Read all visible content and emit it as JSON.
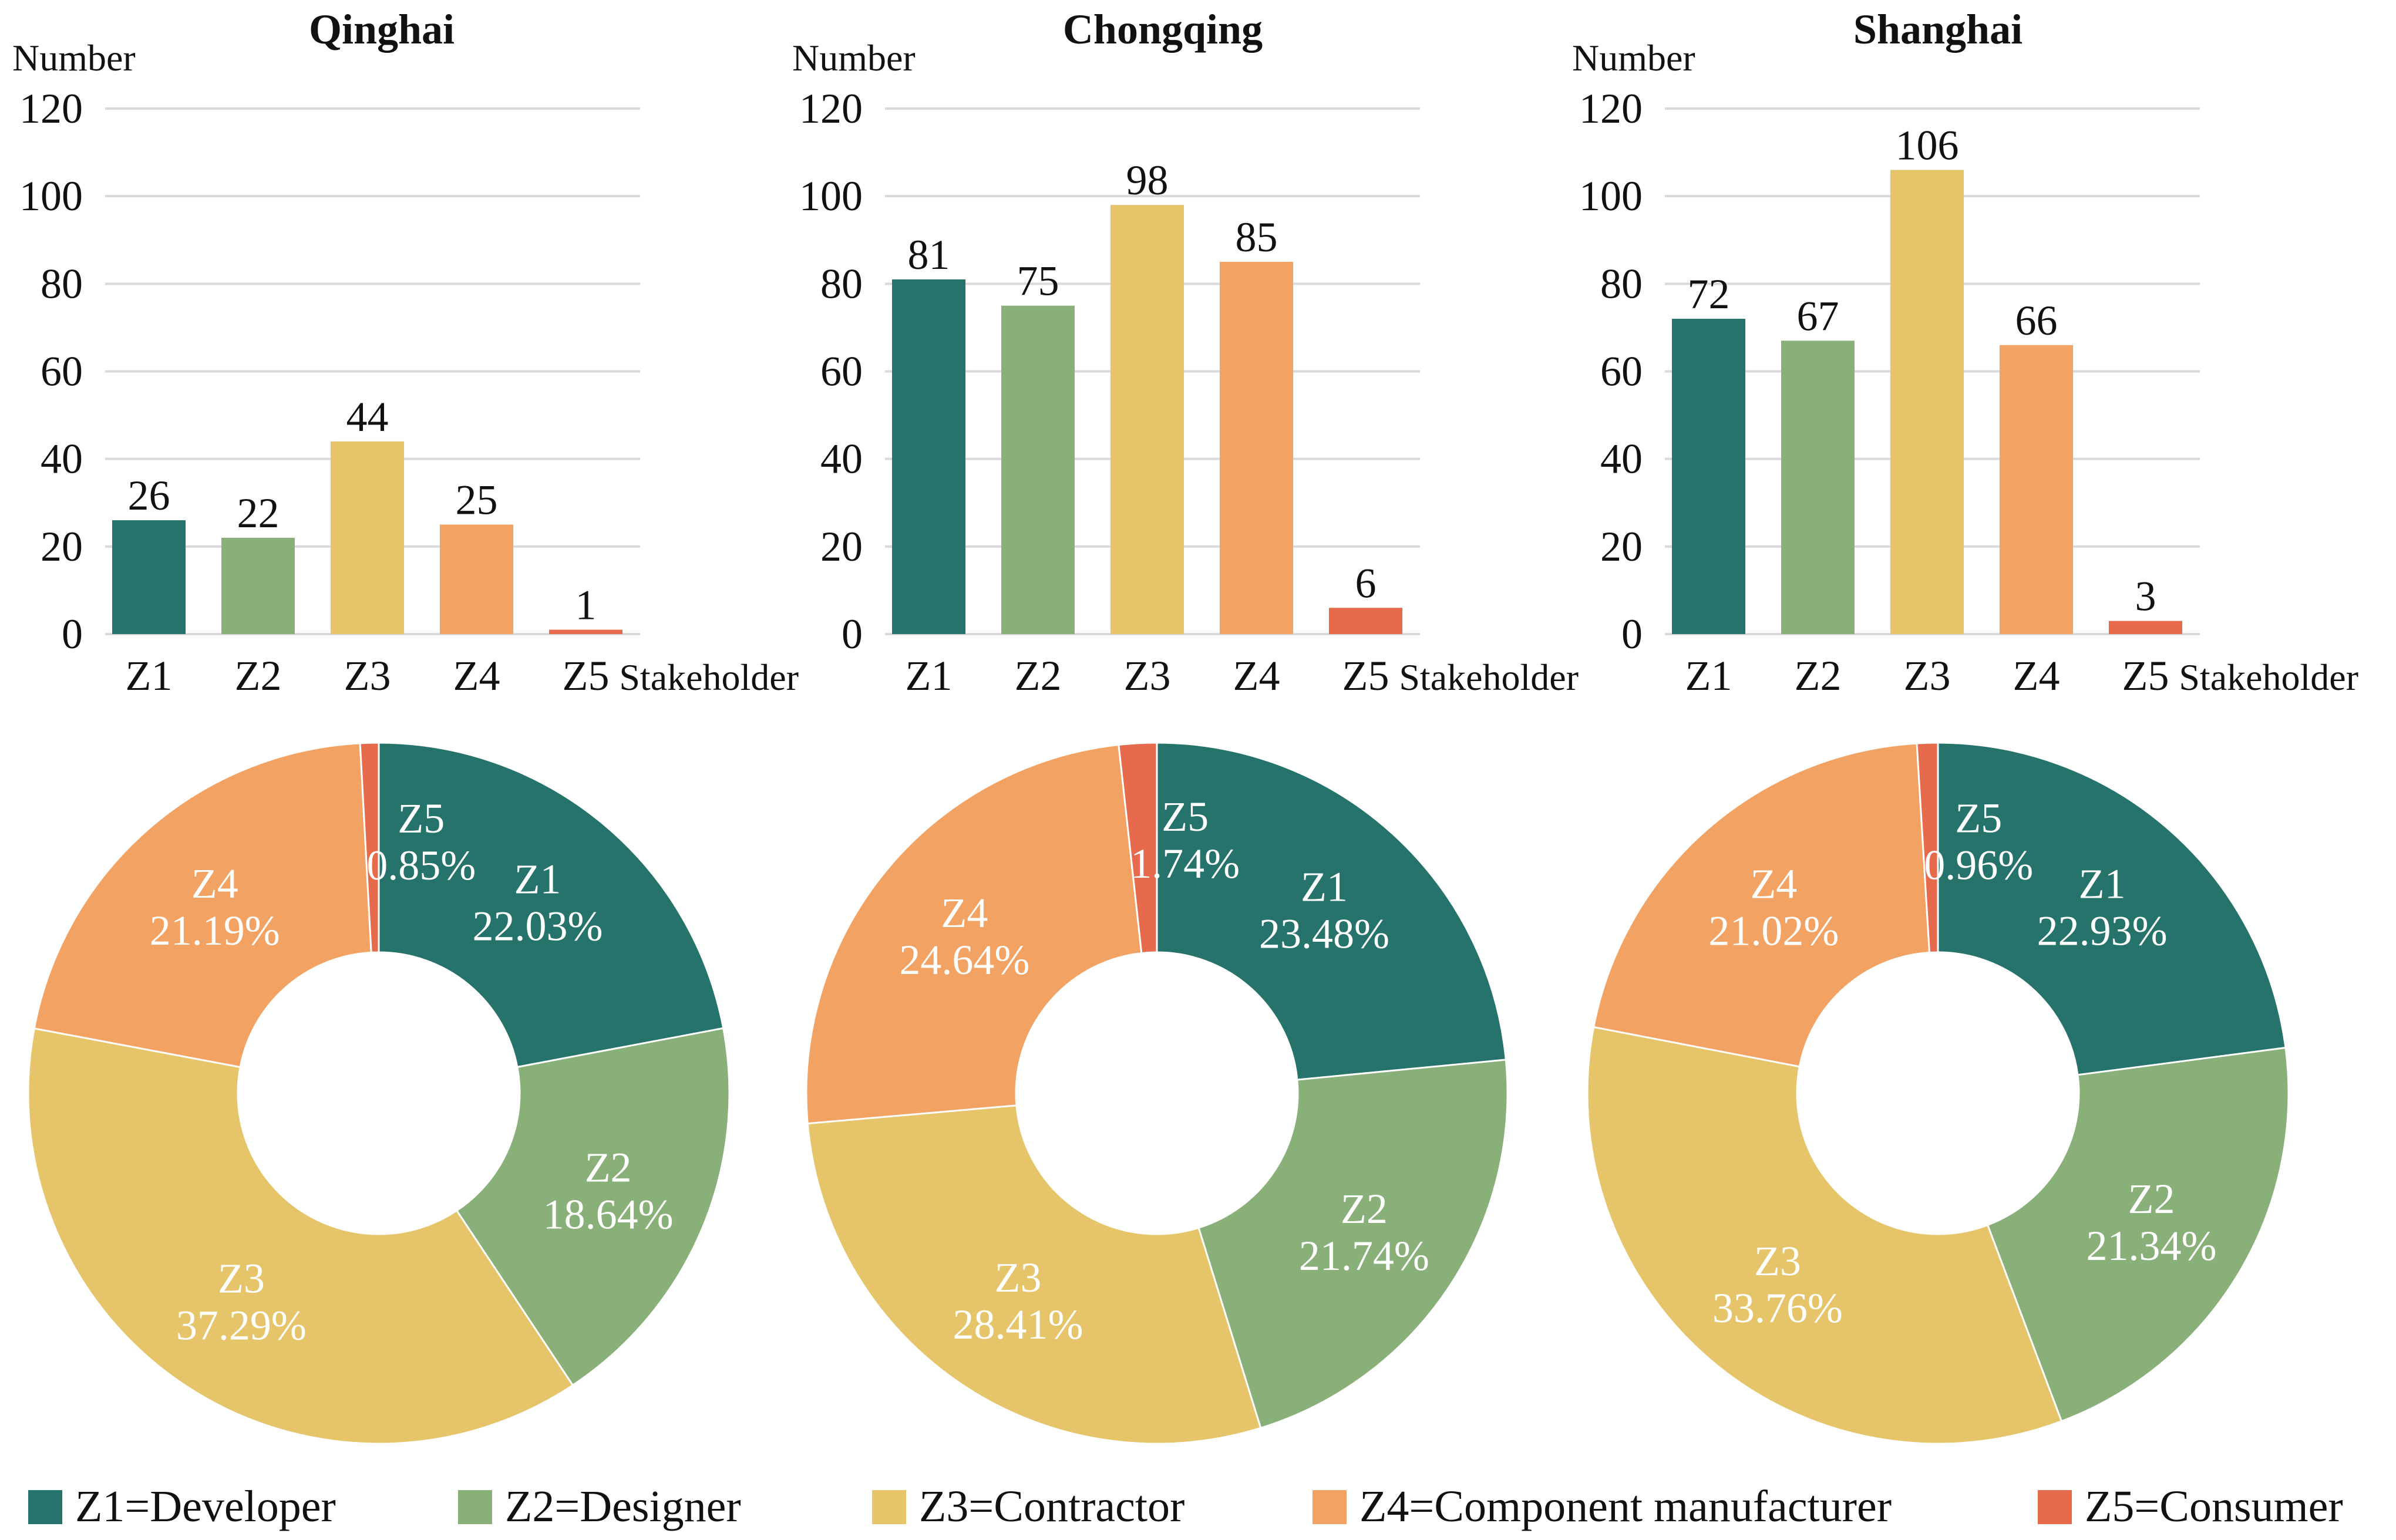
{
  "chart_data": [
    {
      "type": "bar",
      "title": "Qinghai",
      "ylabel": "Number",
      "xlabel": "Stakeholder",
      "ylim": [
        0,
        120
      ],
      "yticks": [
        0,
        20,
        40,
        60,
        80,
        100,
        120
      ],
      "grid": true,
      "categories": [
        "Z1",
        "Z2",
        "Z3",
        "Z4",
        "Z5"
      ],
      "values": [
        26,
        22,
        44,
        25,
        1
      ]
    },
    {
      "type": "bar",
      "title": "Chongqing",
      "ylabel": "Number",
      "xlabel": "Stakeholder",
      "ylim": [
        0,
        120
      ],
      "yticks": [
        0,
        20,
        40,
        60,
        80,
        100,
        120
      ],
      "grid": true,
      "categories": [
        "Z1",
        "Z2",
        "Z3",
        "Z4",
        "Z5"
      ],
      "values": [
        81,
        75,
        98,
        85,
        6
      ]
    },
    {
      "type": "bar",
      "title": "Shanghai",
      "ylabel": "Number",
      "xlabel": "Stakeholder",
      "ylim": [
        0,
        120
      ],
      "yticks": [
        0,
        20,
        40,
        60,
        80,
        100,
        120
      ],
      "grid": true,
      "categories": [
        "Z1",
        "Z2",
        "Z3",
        "Z4",
        "Z5"
      ],
      "values": [
        72,
        67,
        106,
        66,
        3
      ]
    },
    {
      "type": "pie",
      "variant": "donut",
      "region": "Qinghai",
      "categories": [
        "Z1",
        "Z2",
        "Z3",
        "Z4",
        "Z5"
      ],
      "values": [
        22.03,
        18.64,
        37.29,
        21.19,
        0.85
      ],
      "labels": [
        "22.03%",
        "18.64%",
        "37.29%",
        "21.19%",
        "0.85%"
      ]
    },
    {
      "type": "pie",
      "variant": "donut",
      "region": "Chongqing",
      "categories": [
        "Z1",
        "Z2",
        "Z3",
        "Z4",
        "Z5"
      ],
      "values": [
        23.48,
        21.74,
        28.41,
        24.64,
        1.74
      ],
      "labels": [
        "23.48%",
        "21.74%",
        "28.41%",
        "24.64%",
        "1.74%"
      ]
    },
    {
      "type": "pie",
      "variant": "donut",
      "region": "Shanghai",
      "categories": [
        "Z1",
        "Z2",
        "Z3",
        "Z4",
        "Z5"
      ],
      "values": [
        22.93,
        21.34,
        33.76,
        21.02,
        0.96
      ],
      "labels": [
        "22.93%",
        "21.34%",
        "33.76%",
        "21.02%",
        "0.96%"
      ]
    }
  ],
  "legend": [
    {
      "key": "Z1",
      "text": "Z1=Developer",
      "color": "#26736b"
    },
    {
      "key": "Z2",
      "text": "Z2=Designer",
      "color": "#8ab07a"
    },
    {
      "key": "Z3",
      "text": "Z3=Contractor",
      "color": "#e6c46a"
    },
    {
      "key": "Z4",
      "text": "Z4=Component manufacturer",
      "color": "#f2a262"
    },
    {
      "key": "Z5",
      "text": "Z5=Consumer",
      "color": "#e56b4c"
    }
  ],
  "colors": [
    "#26736b",
    "#8ab07a",
    "#e6c46a",
    "#f2a262",
    "#e56b4c"
  ]
}
